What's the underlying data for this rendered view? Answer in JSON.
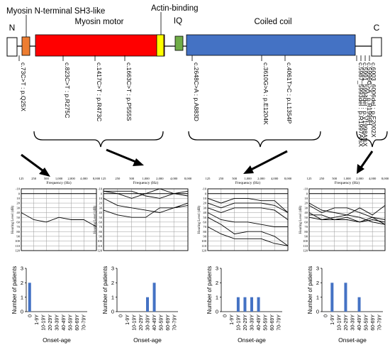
{
  "domains": {
    "n_term": "N",
    "c_term": "C",
    "sh3": "Myosin N-terminal SH3-like",
    "motor": "Myosin motor",
    "actin": "Actin-binding",
    "iq": "IQ",
    "coil": "Coiled coil",
    "colors": {
      "sh3": "#ED7D31",
      "motor": "#FF0000",
      "actin": "#FFFF00",
      "iq": "#70AD47",
      "coil": "#4472C4",
      "bar": "#4472C4"
    }
  },
  "variants": [
    "c.73C>T : p.Q25X",
    "c.823C>T : p.R275C",
    "c.1417C>T : p.R473C",
    "c.1663C>T : p.P555S",
    "c.2648C>A : p.A883D",
    "c.3610G>A : p.E1204K",
    "c.4061T>C : p.L1354P",
    "c.5987_5993del : p.R1997AfsX",
    "c.5991_5994del : p.V1998AfsX",
    "c.5996G>A : p.R1999H",
    "c.6003_6006del : p.F2002X"
  ],
  "audiograms": {
    "title": "Frequency (Hz)",
    "ylabel": "Hearing Level (dB)",
    "x_ticks": [
      "125",
      "250",
      "500",
      "1,000",
      "2,000",
      "4,000",
      "8,000"
    ],
    "y_ticks": [
      "-10",
      "0",
      "10",
      "20",
      "30",
      "40",
      "50",
      "60",
      "70",
      "80",
      "90",
      "100",
      "110",
      "120"
    ],
    "groups": [
      {
        "series": [
          [
            40,
            55,
            60,
            50,
            55,
            55,
            70
          ]
        ]
      },
      {
        "series": [
          [
            -5,
            -5,
            -5,
            5,
            10,
            0,
            -5
          ],
          [
            -5,
            0,
            10,
            0,
            -10,
            0,
            5
          ],
          [
            35,
            45,
            50,
            50,
            30,
            30,
            20
          ],
          [
            10,
            25,
            30,
            35,
            40,
            30,
            25
          ]
        ]
      },
      {
        "series": [
          [
            10,
            20,
            10,
            10,
            15,
            15,
            40
          ],
          [
            20,
            30,
            20,
            20,
            20,
            25,
            40
          ],
          [
            30,
            40,
            30,
            30,
            30,
            35,
            55
          ],
          [
            40,
            55,
            60,
            60,
            65,
            70,
            70
          ],
          [
            50,
            65,
            85,
            80,
            80,
            90,
            110
          ],
          [
            70,
            85,
            95,
            95,
            95,
            105,
            110
          ]
        ]
      },
      {
        "series": [
          [
            40,
            55,
            50,
            45,
            30,
            45,
            25
          ],
          [
            45,
            45,
            55,
            50,
            60,
            50,
            65
          ],
          [
            50,
            55,
            55,
            55,
            60,
            55,
            60
          ],
          [
            20,
            35,
            40,
            45,
            50,
            60,
            65
          ],
          [
            25,
            40,
            30,
            30,
            40,
            50,
            55
          ]
        ]
      }
    ]
  },
  "onset": {
    "ylabel": "Number of patients",
    "xlabel": "Onset-age",
    "categories": [
      "0",
      "1-9Y",
      "10-19Y",
      "20-29Y",
      "30-39Y",
      "40-49Y",
      "50-59Y",
      "60-69Y",
      "70-79Y"
    ],
    "y_ticks": [
      "0",
      "1",
      "2",
      "3"
    ],
    "ymax": 3
  },
  "chart_data": [
    {
      "type": "bar",
      "categories": [
        "0",
        "1-9Y",
        "10-19Y",
        "20-29Y",
        "30-39Y",
        "40-49Y",
        "50-59Y",
        "60-69Y",
        "70-79Y"
      ],
      "values": [
        2,
        0,
        0,
        0,
        0,
        0,
        0,
        0,
        0
      ],
      "ylabel": "Number of patients",
      "xlabel": "Onset-age",
      "ylim": [
        0,
        3
      ]
    },
    {
      "type": "bar",
      "categories": [
        "0",
        "1-9Y",
        "10-19Y",
        "20-29Y",
        "30-39Y",
        "40-49Y",
        "50-59Y",
        "60-69Y",
        "70-79Y"
      ],
      "values": [
        0,
        0,
        0,
        0,
        1,
        2,
        0,
        0,
        0
      ],
      "ylabel": "Number of patients",
      "xlabel": "Onset-age",
      "ylim": [
        0,
        3
      ]
    },
    {
      "type": "bar",
      "categories": [
        "0",
        "1-9Y",
        "10-19Y",
        "20-29Y",
        "30-39Y",
        "40-49Y",
        "50-59Y",
        "60-69Y",
        "70-79Y"
      ],
      "values": [
        0,
        0,
        1,
        1,
        1,
        1,
        0,
        0,
        0
      ],
      "ylabel": "Number of patients",
      "xlabel": "Onset-age",
      "ylim": [
        0,
        3
      ]
    },
    {
      "type": "bar",
      "categories": [
        "0",
        "1-9Y",
        "10-19Y",
        "20-29Y",
        "30-39Y",
        "40-49Y",
        "50-59Y",
        "60-69Y",
        "70-79Y"
      ],
      "values": [
        0,
        2,
        0,
        2,
        0,
        1,
        0,
        0,
        0
      ],
      "ylabel": "Number of patients",
      "xlabel": "Onset-age",
      "ylim": [
        0,
        3
      ]
    }
  ]
}
